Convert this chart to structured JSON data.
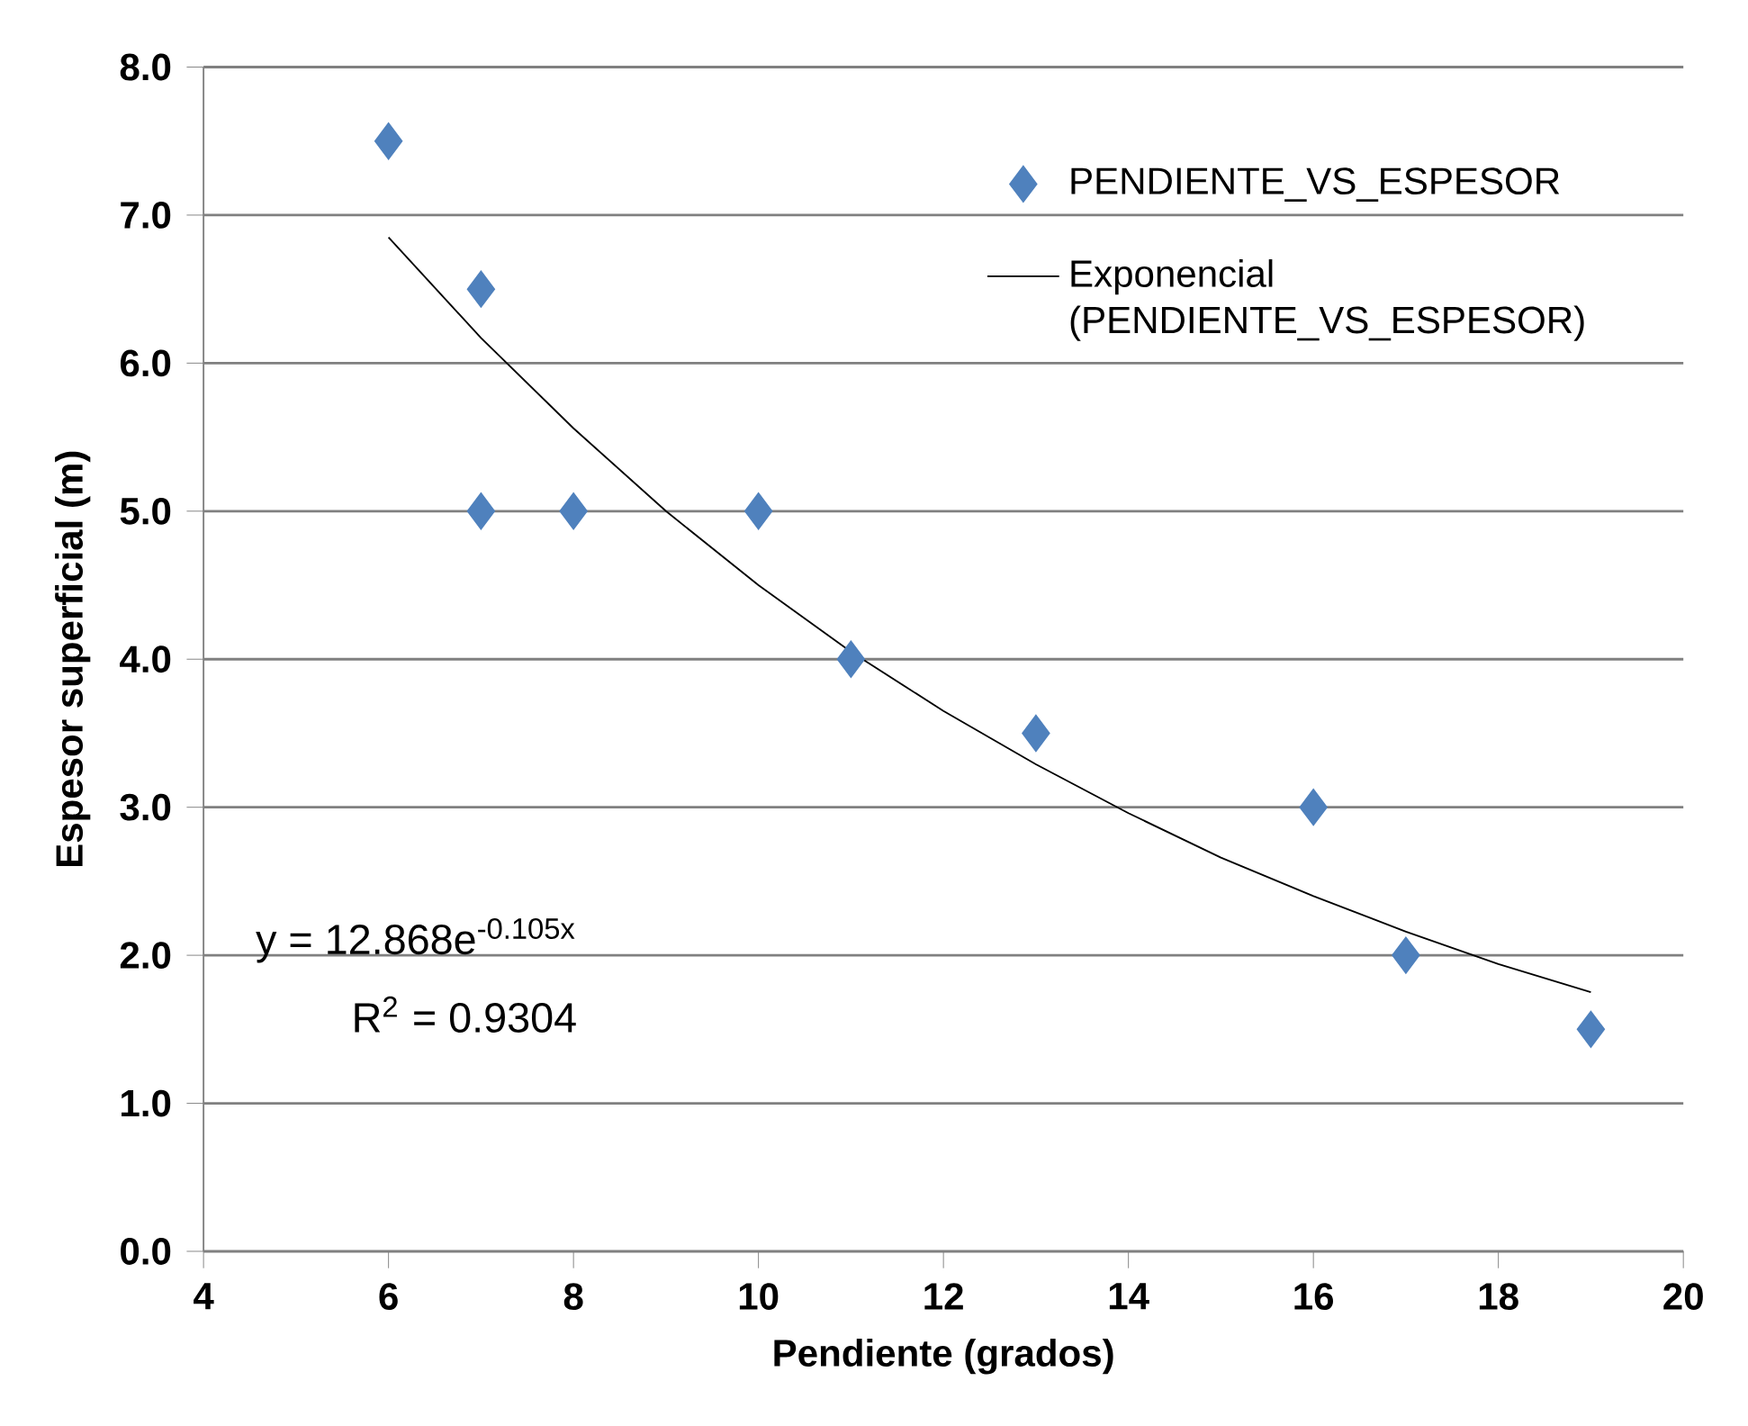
{
  "chart_data": {
    "type": "scatter",
    "xlabel": "Pendiente (grados)",
    "ylabel": "Espesor superficial (m)",
    "xlim": [
      4,
      20
    ],
    "xticks": [
      4,
      6,
      8,
      10,
      12,
      14,
      16,
      18,
      20
    ],
    "ylim": [
      0,
      8
    ],
    "yticks": [
      {
        "value": 0,
        "label": "0.0"
      },
      {
        "value": 1,
        "label": "1.0"
      },
      {
        "value": 2,
        "label": "2.0"
      },
      {
        "value": 3,
        "label": "3.0"
      },
      {
        "value": 4,
        "label": "4.0"
      },
      {
        "value": 5,
        "label": "5.0"
      },
      {
        "value": 6,
        "label": "6.0"
      },
      {
        "value": 7,
        "label": "7.0"
      },
      {
        "value": 8,
        "label": "8.0"
      }
    ],
    "grid": "y",
    "legend": "top right",
    "series": [
      {
        "name": "PENDIENTE_VS_ESPESOR",
        "marker": "diamond",
        "color": "#4f81bd",
        "x": [
          6,
          7,
          7,
          8,
          10,
          11,
          13,
          16,
          17,
          19
        ],
        "values": [
          7.5,
          6.5,
          5,
          5,
          5,
          4,
          3.5,
          3,
          2,
          1.5
        ]
      },
      {
        "name": "Exponencial (PENDIENTE_VS_ESPESOR)",
        "type": "line",
        "marker": "none",
        "line_style": "solid",
        "color": "#000000",
        "x": [
          6,
          7,
          8,
          9,
          10,
          11,
          12,
          13,
          14,
          15,
          16,
          17,
          18,
          19
        ],
        "values": [
          6.85,
          6.17,
          5.56,
          5.0,
          4.5,
          4.05,
          3.65,
          3.29,
          2.96,
          2.66,
          2.4,
          2.16,
          1.94,
          1.75
        ]
      }
    ],
    "annotations": [
      "y = 12.868e$^{-0.105x}$",
      "R$^{2}$ = 0.9304"
    ]
  }
}
